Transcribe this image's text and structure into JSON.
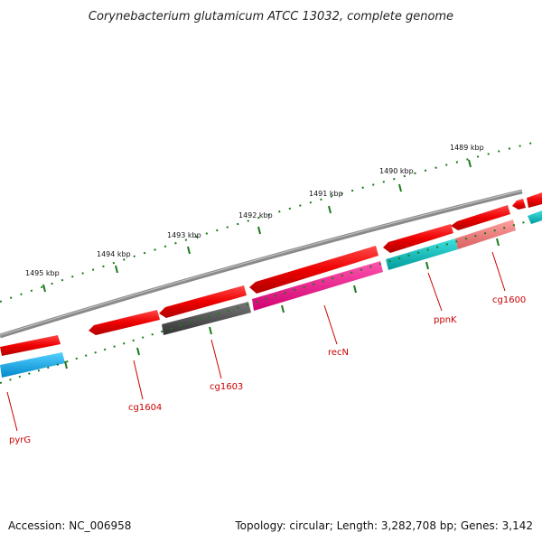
{
  "title": "Corynebacterium glutamicum ATCC 13032, complete genome",
  "footer": {
    "accession": "Accession: NC_006958",
    "topology": "Topology: circular; Length: 3,282,708 bp; Genes: 3,142"
  },
  "scale_labels": [
    "1495 kbp",
    "1494 kbp",
    "1493 kbp",
    "1492 kbp",
    "1491 kbp",
    "1490 kbp",
    "1489 kbp"
  ],
  "gene_labels": [
    "pyrG",
    "cg1604",
    "cg1603",
    "recN",
    "ppnK",
    "cg1600"
  ],
  "colors": {
    "forward_gene": "#ff0000",
    "backbone": "#7a7a7a",
    "pyrG": "#00aaee",
    "cg1603": "#555555",
    "recN": "#ff1493",
    "ppnK": "#00c0c0",
    "cg1600": "#f08080",
    "ticks": "#1a7a1a",
    "label": "#cc0000"
  }
}
